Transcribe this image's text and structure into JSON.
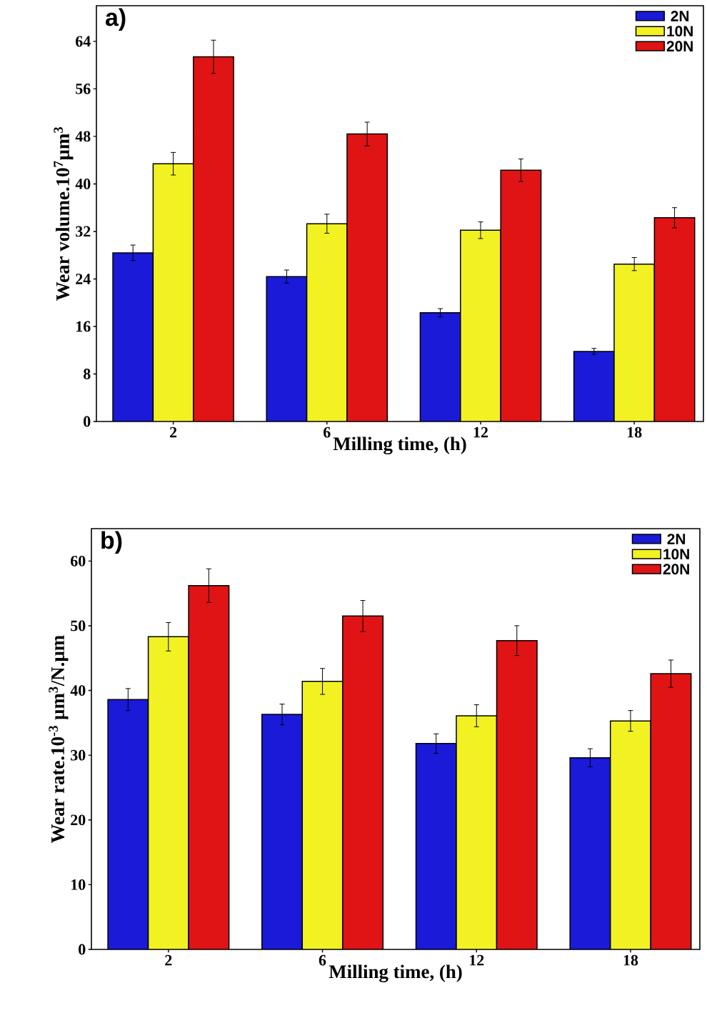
{
  "chart_data": [
    {
      "type": "bar",
      "title": "a)",
      "xlabel": "Milling time, (h)",
      "ylabel": "Wear volume.10$^{7}$µm$^{3}$",
      "categories": [
        "2",
        "6",
        "12",
        "18"
      ],
      "series": [
        {
          "name": "2N",
          "color": "#1a1ad8",
          "values": [
            28.4,
            24.4,
            18.3,
            11.8
          ],
          "errors": [
            1.3,
            1.1,
            0.7,
            0.5
          ]
        },
        {
          "name": "10N",
          "color": "#f2f222",
          "values": [
            43.4,
            33.3,
            32.2,
            26.5
          ],
          "errors": [
            1.9,
            1.6,
            1.4,
            1.1
          ]
        },
        {
          "name": "20N",
          "color": "#e01414",
          "values": [
            61.4,
            48.4,
            42.3,
            34.3
          ],
          "errors": [
            2.8,
            2.0,
            1.9,
            1.7
          ]
        }
      ],
      "ylim": [
        0,
        70
      ],
      "yticks": [
        0,
        8,
        16,
        24,
        32,
        40,
        48,
        56,
        64
      ],
      "legend": "top right"
    },
    {
      "type": "bar",
      "title": "b)",
      "xlabel": "Milling time, (h)",
      "ylabel": "Wear rate.10$^{-3}$ µm$^{3}$/N.µm",
      "categories": [
        "2",
        "6",
        "12",
        "18"
      ],
      "series": [
        {
          "name": "2N",
          "color": "#1a1ad8",
          "values": [
            38.6,
            36.3,
            31.8,
            29.6
          ],
          "errors": [
            1.7,
            1.6,
            1.5,
            1.4
          ]
        },
        {
          "name": "10N",
          "color": "#f2f222",
          "values": [
            48.3,
            41.4,
            36.1,
            35.3
          ],
          "errors": [
            2.2,
            2.0,
            1.7,
            1.6
          ]
        },
        {
          "name": "20N",
          "color": "#e01414",
          "values": [
            56.2,
            51.5,
            47.7,
            42.6
          ],
          "errors": [
            2.6,
            2.4,
            2.3,
            2.1
          ]
        }
      ],
      "ylim": [
        0,
        65
      ],
      "yticks": [
        0,
        10,
        20,
        30,
        40,
        50,
        60
      ],
      "legend": "top right"
    }
  ]
}
